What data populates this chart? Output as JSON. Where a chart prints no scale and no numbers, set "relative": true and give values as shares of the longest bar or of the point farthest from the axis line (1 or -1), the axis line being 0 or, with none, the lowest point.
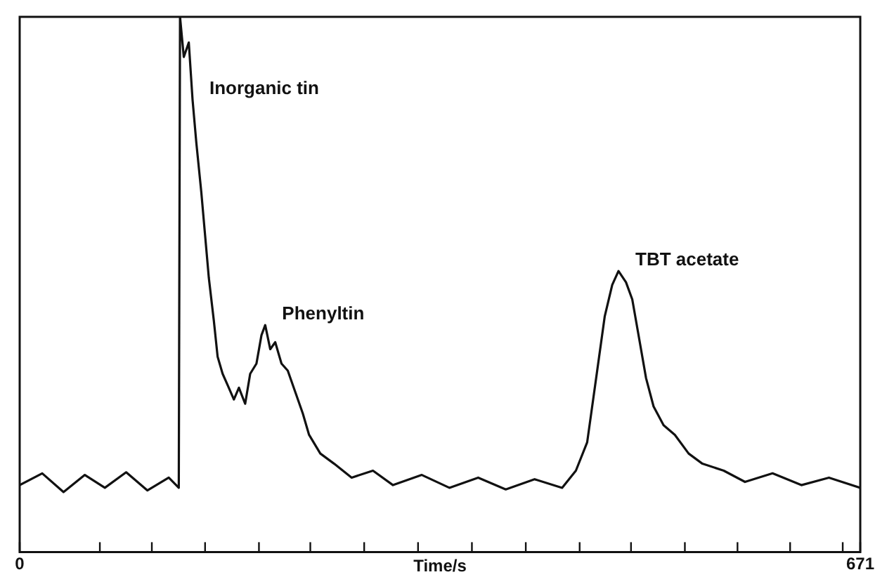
{
  "chart_data": {
    "type": "line",
    "relative": true,
    "xlabel": "Time/s",
    "xlim": [
      0,
      671
    ],
    "xticks": [
      0,
      {
        "value": 64,
        "label": null
      },
      {
        "value": 105.5,
        "label": null
      },
      {
        "value": 148,
        "label": null
      },
      {
        "value": 191,
        "label": null
      },
      {
        "value": 232,
        "label": null
      },
      {
        "value": 275,
        "label": null
      },
      {
        "value": 318,
        "label": null
      },
      {
        "value": 361,
        "label": null
      },
      {
        "value": 404,
        "label": null
      },
      {
        "value": 447,
        "label": null
      },
      {
        "value": 488,
        "label": null
      },
      {
        "value": 531,
        "label": null
      },
      {
        "value": 573,
        "label": null
      },
      {
        "value": 615,
        "label": null
      },
      {
        "value": 657,
        "label": null
      },
      671
    ],
    "tick_labels": "x",
    "grid": false,
    "legend": false,
    "marker": "none",
    "line_style": "solid",
    "series": [
      {
        "color": "#111111",
        "x": [
          0,
          18,
          35,
          52,
          68,
          85,
          102,
          119,
          127,
          128,
          131,
          135,
          138,
          141,
          145,
          148,
          151,
          155,
          158,
          162,
          166,
          171,
          175,
          180,
          184,
          189,
          193,
          196,
          200,
          204,
          209,
          214,
          220,
          226,
          231,
          240,
          251,
          265,
          282,
          298,
          321,
          343,
          366,
          388,
          411,
          433,
          444,
          453,
          461,
          467,
          473,
          478,
          484,
          489,
          495,
          500,
          506,
          514,
          523,
          534,
          545,
          562,
          579,
          601,
          624,
          646,
          671
        ],
        "values": [
          0.125,
          0.147,
          0.112,
          0.144,
          0.12,
          0.149,
          0.115,
          0.139,
          0.12,
          1.0,
          0.925,
          0.952,
          0.845,
          0.765,
          0.672,
          0.592,
          0.512,
          0.432,
          0.365,
          0.333,
          0.312,
          0.285,
          0.307,
          0.277,
          0.333,
          0.352,
          0.405,
          0.424,
          0.379,
          0.392,
          0.352,
          0.339,
          0.299,
          0.259,
          0.219,
          0.184,
          0.165,
          0.139,
          0.152,
          0.125,
          0.144,
          0.12,
          0.139,
          0.117,
          0.136,
          0.12,
          0.152,
          0.205,
          0.339,
          0.44,
          0.499,
          0.525,
          0.504,
          0.472,
          0.392,
          0.325,
          0.272,
          0.237,
          0.219,
          0.184,
          0.165,
          0.152,
          0.131,
          0.147,
          0.125,
          0.139,
          0.12
        ]
      }
    ],
    "annotations": [
      {
        "text": "Inorganic tin",
        "x": 138,
        "y": 0.845
      },
      {
        "text": "Phenyltin",
        "x": 196,
        "y": 0.424
      },
      {
        "text": "TBT acetate",
        "x": 478,
        "y": 0.525
      }
    ]
  }
}
